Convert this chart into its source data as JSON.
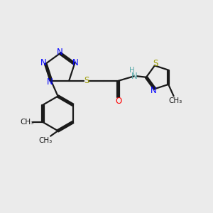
{
  "bg_color": "#ebebeb",
  "bond_color": "#1a1a1a",
  "N_color": "#0000ff",
  "S_color": "#9a9a00",
  "O_color": "#ff0000",
  "H_color": "#5aabab",
  "C_color": "#1a1a1a",
  "line_width": 1.6,
  "font_size_atoms": 8.5,
  "font_size_methyl": 7.5,
  "xlim": [
    0,
    10
  ],
  "ylim": [
    0,
    10
  ]
}
